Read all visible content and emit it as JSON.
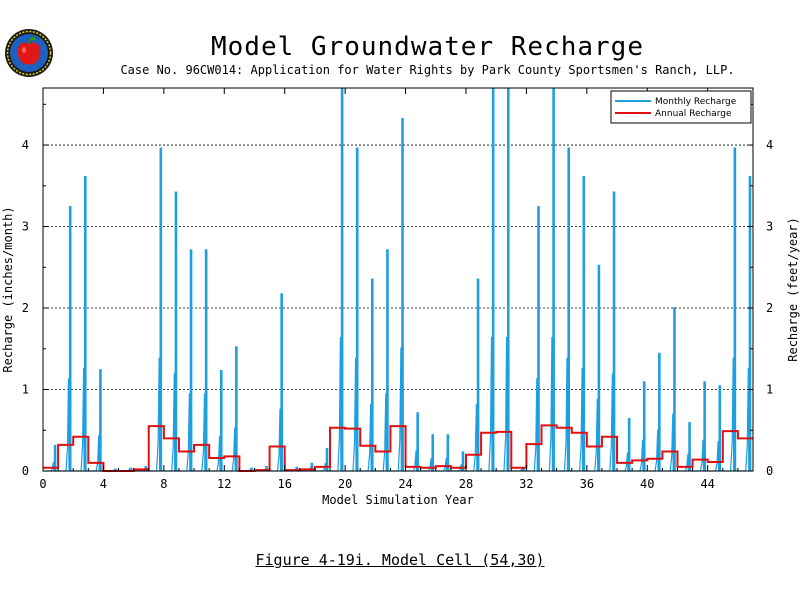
{
  "header": {
    "title": "Model Groundwater Recharge",
    "subtitle": "Case No. 96CW014: Application for Water Rights by Park County Sportsmen's Ranch, LLP."
  },
  "caption": "Figure 4-19i.  Model Cell (54,30)",
  "colors": {
    "monthly": "#1e9fe0",
    "annual": "#e01010",
    "grid": "#000000"
  },
  "chart_data": {
    "type": "line",
    "xlabel": "Model Simulation Year",
    "ylabel_left": "Recharge (inches/month)",
    "ylabel_right": "Recharge (feet/year)",
    "xlim": [
      0,
      47
    ],
    "ylim": [
      0,
      4.7
    ],
    "x_ticks": [
      "0",
      "4",
      "8",
      "12",
      "16",
      "20",
      "24",
      "28",
      "32",
      "36",
      "40",
      "44"
    ],
    "x_tick_values": [
      0,
      4,
      8,
      12,
      16,
      20,
      24,
      28,
      32,
      36,
      40,
      44
    ],
    "y_ticks_left": [
      "0",
      "1",
      "2",
      "3",
      "4"
    ],
    "y_ticks_right": [
      "0",
      "1",
      "2",
      "3",
      "4"
    ],
    "y_tick_values": [
      0,
      1,
      2,
      3,
      4
    ],
    "grid": "horizontal dashed at y ticks",
    "legend_position": "top-right",
    "series": [
      {
        "name": "Monthly Recharge",
        "style": "line",
        "spike_years": [
          0.8,
          1.8,
          2.8,
          3.8,
          4.8,
          5.8,
          6.8,
          7.8,
          8.8,
          9.8,
          10.8,
          11.8,
          12.8,
          13.8,
          14.8,
          15.8,
          16.8,
          17.8,
          18.8,
          19.8,
          20.8,
          21.8,
          22.8,
          23.8,
          24.8,
          25.8,
          26.8,
          27.8,
          28.8,
          29.8,
          30.8,
          31.8,
          32.8,
          33.8,
          34.8,
          35.8,
          36.8,
          37.8,
          38.8,
          39.8,
          40.8,
          41.8,
          42.8,
          43.8,
          44.8,
          45.8,
          46.8
        ],
        "peaks": [
          0.32,
          3.25,
          3.62,
          1.25,
          0.03,
          0.04,
          0.06,
          3.97,
          3.43,
          2.72,
          2.72,
          1.24,
          1.53,
          0.04,
          0.06,
          2.18,
          0.05,
          0.1,
          0.28,
          4.7,
          3.97,
          2.36,
          2.72,
          4.33,
          0.72,
          0.45,
          0.45,
          0.24,
          2.36,
          4.7,
          4.7,
          0.05,
          3.25,
          4.7,
          3.97,
          3.62,
          2.53,
          3.43,
          0.65,
          1.1,
          1.45,
          2.01,
          0.6,
          1.1,
          1.05,
          3.97,
          3.62
        ]
      },
      {
        "name": "Annual Recharge",
        "style": "step",
        "years": [
          0,
          1,
          2,
          3,
          4,
          5,
          6,
          7,
          8,
          9,
          10,
          11,
          12,
          13,
          14,
          15,
          16,
          17,
          18,
          19,
          20,
          21,
          22,
          23,
          24,
          25,
          26,
          27,
          28,
          29,
          30,
          31,
          32,
          33,
          34,
          35,
          36,
          37,
          38,
          39,
          40,
          41,
          42,
          43,
          44,
          45,
          46
        ],
        "values": [
          0.04,
          0.32,
          0.42,
          0.1,
          0.0,
          0.0,
          0.02,
          0.55,
          0.4,
          0.24,
          0.32,
          0.16,
          0.18,
          0.0,
          0.01,
          0.3,
          0.01,
          0.02,
          0.05,
          0.53,
          0.52,
          0.31,
          0.24,
          0.55,
          0.05,
          0.04,
          0.06,
          0.04,
          0.2,
          0.47,
          0.48,
          0.04,
          0.33,
          0.56,
          0.53,
          0.47,
          0.3,
          0.42,
          0.1,
          0.13,
          0.15,
          0.24,
          0.05,
          0.14,
          0.11,
          0.49,
          0.4
        ]
      }
    ]
  }
}
